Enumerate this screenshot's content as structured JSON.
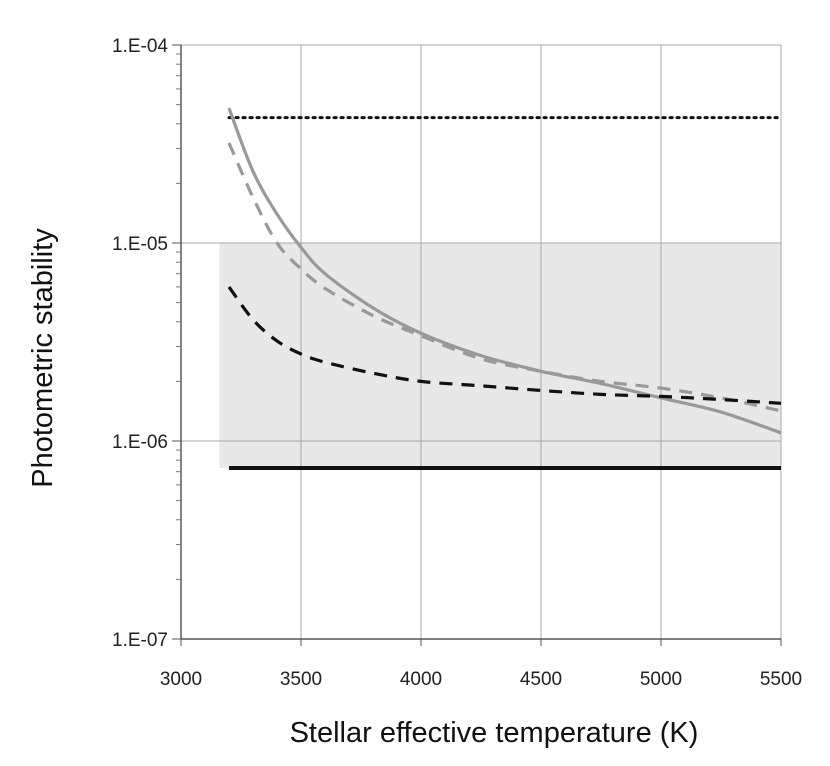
{
  "chart_data": {
    "type": "line",
    "title": "",
    "xlabel": "Stellar effective temperature (K)",
    "ylabel": "Photometric stability",
    "xlim": [
      3000,
      5500
    ],
    "ylim": [
      1e-07,
      0.0001
    ],
    "yscale": "log",
    "grid": true,
    "x_ticks": [
      3000,
      3500,
      4000,
      4500,
      5000,
      5500
    ],
    "x_tick_labels": [
      "3000",
      "3500",
      "4000",
      "4500",
      "5000",
      "5500"
    ],
    "y_ticks": [
      1e-07,
      1e-06,
      1e-05,
      0.0001
    ],
    "y_tick_labels": [
      "1.E-07",
      "1.E-06",
      "1.E-05",
      "1.E-04"
    ],
    "shaded_region": {
      "x": [
        3160,
        5500
      ],
      "y": [
        7.3e-07,
        1e-05
      ],
      "color": "#e8e8e8"
    },
    "series": [
      {
        "name": "black-dotted",
        "style": "dotted",
        "color": "#111111",
        "x": [
          3200,
          5500
        ],
        "values": [
          4.3e-05,
          4.3e-05
        ]
      },
      {
        "name": "gray-solid",
        "style": "solid",
        "color": "#999999",
        "x": [
          3200,
          3300,
          3400,
          3500,
          3600,
          3800,
          4000,
          4250,
          4500,
          4750,
          5000,
          5250,
          5500
        ],
        "values": [
          4.8e-05,
          2.3e-05,
          1.4e-05,
          9.5e-06,
          7e-06,
          4.7e-06,
          3.5e-06,
          2.7e-06,
          2.25e-06,
          1.95e-06,
          1.65e-06,
          1.4e-06,
          1.1e-06
        ]
      },
      {
        "name": "gray-dashed",
        "style": "dashed",
        "color": "#999999",
        "x": [
          3200,
          3300,
          3400,
          3500,
          3600,
          3800,
          4000,
          4250,
          4500,
          4750,
          5000,
          5250,
          5500
        ],
        "values": [
          3.2e-05,
          1.7e-05,
          1e-05,
          7.4e-06,
          5.9e-06,
          4.3e-06,
          3.4e-06,
          2.6e-06,
          2.25e-06,
          2e-06,
          1.85e-06,
          1.65e-06,
          1.42e-06
        ]
      },
      {
        "name": "black-dashed",
        "style": "dashed",
        "color": "#111111",
        "x": [
          3200,
          3300,
          3400,
          3500,
          3600,
          3800,
          4000,
          4250,
          4500,
          4750,
          5000,
          5250,
          5500
        ],
        "values": [
          6e-06,
          4.1e-06,
          3.2e-06,
          2.75e-06,
          2.5e-06,
          2.2e-06,
          2e-06,
          1.9e-06,
          1.8e-06,
          1.72e-06,
          1.68e-06,
          1.62e-06,
          1.55e-06
        ]
      },
      {
        "name": "black-solid",
        "style": "solid",
        "color": "#111111",
        "x": [
          3200,
          5500
        ],
        "values": [
          7.3e-07,
          7.3e-07
        ]
      }
    ]
  }
}
